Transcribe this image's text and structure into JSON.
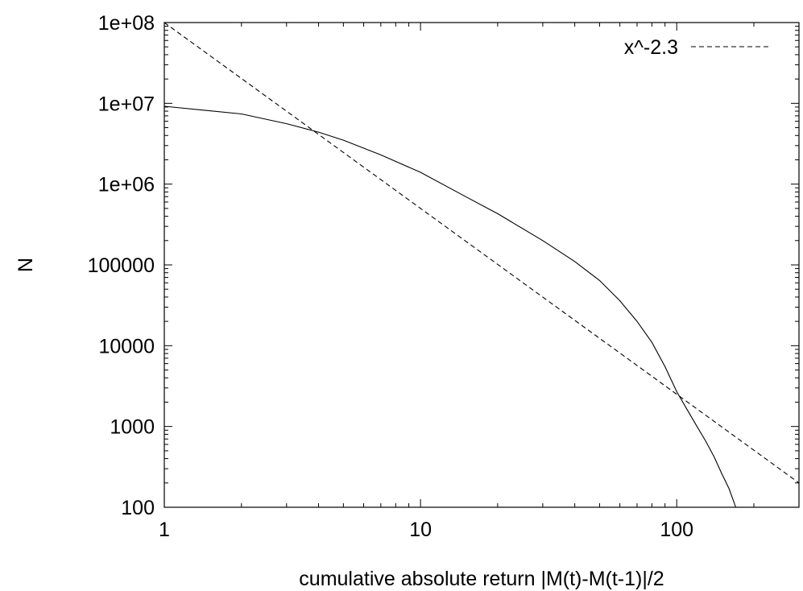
{
  "chart_data": {
    "type": "line",
    "title": "",
    "xlabel": "cumulative absolute return |M(t)-M(t-1)|/2",
    "ylabel": "N",
    "xscale": "log",
    "yscale": "log",
    "xlim": [
      1,
      300
    ],
    "ylim": [
      100,
      100000000
    ],
    "x_ticks": [
      1,
      10,
      100
    ],
    "x_tick_labels": [
      "1",
      "10",
      "100"
    ],
    "y_ticks": [
      100,
      1000,
      10000,
      100000,
      1000000,
      10000000,
      100000000
    ],
    "y_tick_labels": [
      "100",
      "1000",
      "10000",
      "100000",
      "1e+06",
      "1e+07",
      "1e+08"
    ],
    "grid": false,
    "legend_position": "top-right",
    "series": [
      {
        "style": "solid",
        "color": "#000000",
        "x": [
          1,
          2,
          3,
          4,
          5,
          7,
          10,
          15,
          20,
          30,
          40,
          50,
          60,
          70,
          80,
          90,
          100,
          110,
          120,
          130,
          140,
          150,
          160,
          170
        ],
        "y": [
          9200000,
          7400000,
          5600000,
          4400000,
          3500000,
          2300000,
          1400000,
          700000,
          430000,
          200000,
          110000,
          64000,
          36000,
          20000,
          11000,
          5500,
          2700,
          1600,
          1000,
          650,
          420,
          260,
          170,
          100
        ]
      },
      {
        "name": "x^-2.3",
        "style": "dashed",
        "color": "#000000",
        "x": [
          1,
          300
        ],
        "y": [
          100000000,
          200
        ]
      }
    ]
  }
}
